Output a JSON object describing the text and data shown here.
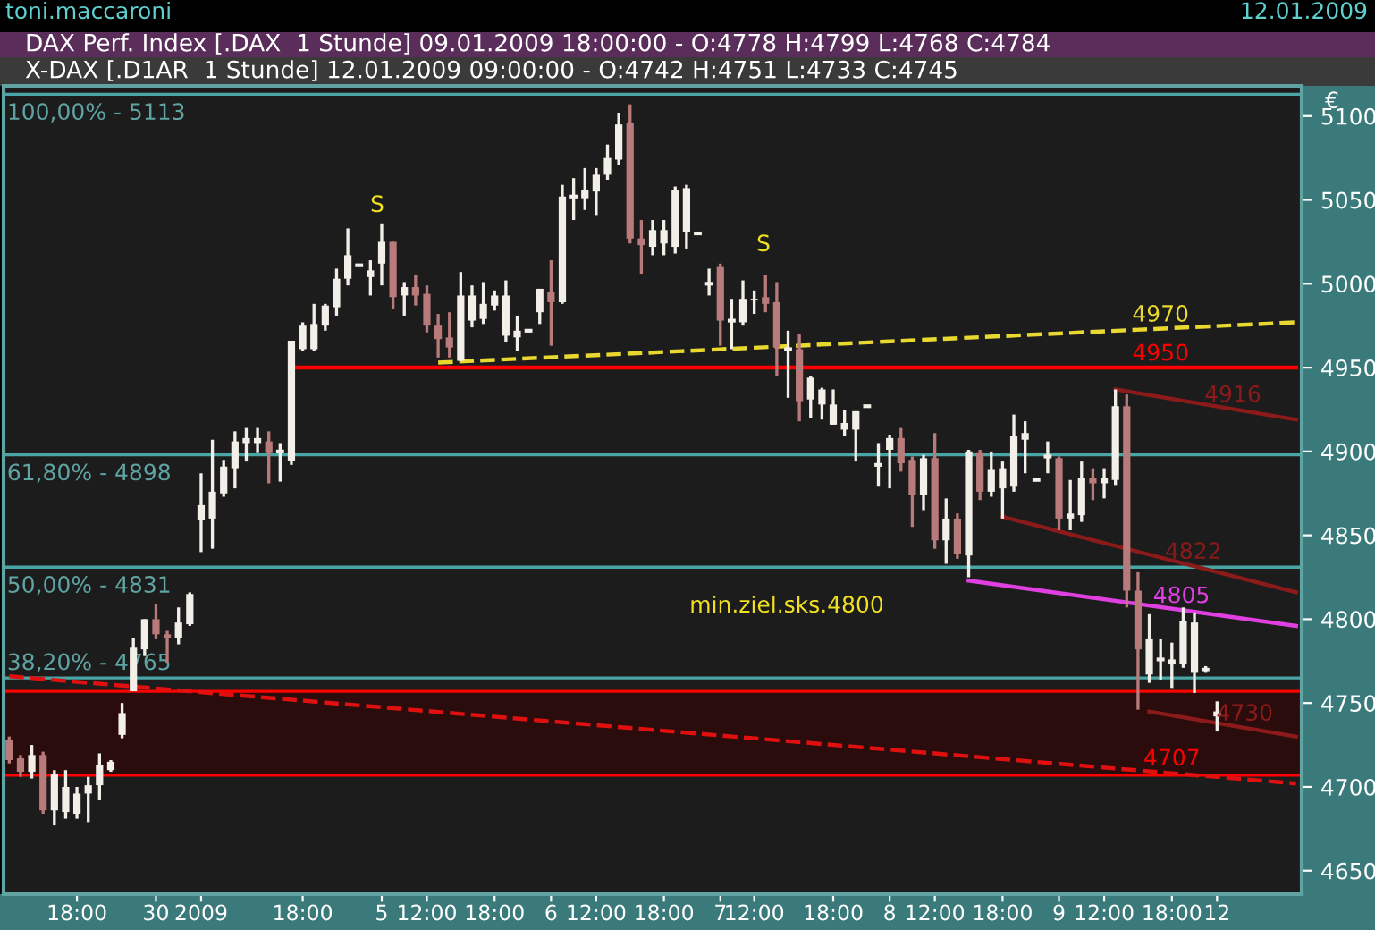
{
  "chart_data": {
    "type": "candlestick",
    "title": "DAX Perf. Index [.DAX  1 Stunde] 09.01.2009 18:00:00 - O:4778 H:4799 L:4768 C:4784",
    "subtitle": "X-DAX [.D1AR  1 Stunde] 12.01.2009 09:00:00 - O:4742 H:4751 L:4733 C:4745",
    "categories": [
      null,
      null,
      null,
      null,
      null,
      null,
      "18:00",
      null,
      null,
      null,
      null,
      null,
      null,
      "30",
      null,
      null,
      null,
      "2009",
      null,
      null,
      null,
      null,
      null,
      null,
      null,
      null,
      "18:00",
      null,
      null,
      null,
      null,
      null,
      null,
      "5",
      null,
      null,
      null,
      "12:00",
      null,
      null,
      null,
      null,
      null,
      "18:00",
      null,
      null,
      null,
      null,
      "6",
      null,
      null,
      null,
      "12:00",
      null,
      null,
      null,
      null,
      null,
      "18:00",
      null,
      null,
      null,
      null,
      "7",
      null,
      null,
      "12:00",
      null,
      null,
      null,
      null,
      null,
      null,
      "18:00",
      null,
      null,
      null,
      null,
      "8",
      null,
      null,
      null,
      "12:00",
      null,
      null,
      null,
      null,
      null,
      "18:00",
      null,
      null,
      null,
      null,
      "9",
      null,
      null,
      null,
      "12:00",
      null,
      null,
      null,
      null,
      null,
      "18:00",
      null,
      null,
      null,
      "12",
      null,
      null,
      null,
      null,
      null,
      null,
      null
    ],
    "ohlc": [
      [
        4728,
        4730,
        4714,
        4716
      ],
      [
        4717,
        4719,
        4706,
        4709
      ],
      [
        4709,
        4725,
        4705,
        4719
      ],
      [
        4719,
        4721,
        4684,
        4686
      ],
      [
        4686,
        4710,
        4677,
        4708
      ],
      [
        4685,
        4710,
        4681,
        4700
      ],
      [
        4684,
        4700,
        4681,
        4696
      ],
      [
        4696,
        4706,
        4679,
        4701
      ],
      [
        4701,
        4720,
        4692,
        4713
      ],
      [
        4710,
        4716,
        4709,
        4715
      ],
      [
        4731,
        4750,
        4729,
        4744
      ],
      [
        4757,
        4789,
        4757,
        4783
      ],
      [
        4782,
        4800,
        4778,
        4800
      ],
      [
        4800,
        4809,
        4788,
        4791
      ],
      [
        4791,
        4793,
        4774,
        4789
      ],
      [
        4789,
        4807,
        4785,
        4798
      ],
      [
        4797,
        4816,
        4796,
        4815
      ],
      [
        4859,
        4887,
        4840,
        4868
      ],
      [
        4860,
        4907,
        4842,
        4876
      ],
      [
        4875,
        4895,
        4873,
        4891
      ],
      [
        4890,
        4912,
        4878,
        4906
      ],
      [
        4905,
        4914,
        4894,
        4908
      ],
      [
        4905,
        4914,
        4899,
        4908
      ],
      [
        4906,
        4912,
        4881,
        4899
      ],
      [
        4900,
        4905,
        4882,
        4900
      ],
      [
        4894,
        4966,
        4892,
        4966
      ],
      [
        4961,
        4977,
        4960,
        4975
      ],
      [
        4961,
        4988,
        4960,
        4976
      ],
      [
        4975,
        4988,
        4972,
        4987
      ],
      [
        4986,
        5009,
        4981,
        5003
      ],
      [
        5003,
        5033,
        4999,
        5017
      ],
      [
        5011,
        5011,
        5011,
        5011
      ],
      [
        5004,
        5014,
        4993,
        5008
      ],
      [
        5012,
        5036,
        4999,
        5025
      ],
      [
        5025,
        5025,
        4985,
        4992
      ],
      [
        4993,
        5001,
        4981,
        4998
      ],
      [
        4998,
        5005,
        4987,
        4993
      ],
      [
        4994,
        4999,
        4971,
        4975
      ],
      [
        4975,
        4982,
        4956,
        4967
      ],
      [
        4968,
        4983,
        4956,
        4962
      ],
      [
        4954,
        5007,
        4954,
        4993
      ],
      [
        4978,
        4999,
        4974,
        4993
      ],
      [
        4979,
        5001,
        4976,
        4988
      ],
      [
        4987,
        4996,
        4984,
        4993
      ],
      [
        4969,
        5002,
        4965,
        4993
      ],
      [
        4968,
        4981,
        4960,
        4972
      ],
      [
        4972,
        4972,
        4972,
        4972
      ],
      [
        4983,
        4997,
        4976,
        4997
      ],
      [
        4995,
        5014,
        4963,
        4989
      ],
      [
        4989,
        5059,
        4988,
        5052
      ],
      [
        5052,
        5063,
        5038,
        5052
      ],
      [
        5051,
        5069,
        5044,
        5056
      ],
      [
        5055,
        5069,
        5041,
        5065
      ],
      [
        5065,
        5083,
        5062,
        5075
      ],
      [
        5074,
        5102,
        5071,
        5095
      ],
      [
        5096,
        5107,
        5024,
        5027
      ],
      [
        5027,
        5038,
        5006,
        5023
      ],
      [
        5022,
        5038,
        5017,
        5032
      ],
      [
        5024,
        5038,
        5017,
        5032
      ],
      [
        5022,
        5058,
        5018,
        5056
      ],
      [
        5031,
        5059,
        5021,
        5057
      ],
      [
        5030,
        5030,
        5030,
        5030
      ],
      [
        5000,
        5009,
        4993,
        5000
      ],
      [
        5010,
        5012,
        4963,
        4978
      ],
      [
        4978,
        4991,
        4961,
        4978
      ],
      [
        4977,
        5002,
        4975,
        4991
      ],
      [
        4990,
        4996,
        4982,
        4991
      ],
      [
        4992,
        5005,
        4983,
        4988
      ],
      [
        4989,
        5001,
        4945,
        4962
      ],
      [
        4961,
        4972,
        4932,
        4961
      ],
      [
        4961,
        4970,
        4918,
        4930
      ],
      [
        4931,
        4945,
        4920,
        4944
      ],
      [
        4928,
        4938,
        4919,
        4937
      ],
      [
        4916,
        4937,
        4916,
        4928
      ],
      [
        4913,
        4925,
        4909,
        4917
      ],
      [
        4913,
        4924,
        4894,
        4924
      ],
      [
        4927,
        4927,
        4927,
        4927
      ],
      [
        4892,
        4905,
        4879,
        4892
      ],
      [
        4901,
        4910,
        4878,
        4908
      ],
      [
        4908,
        4914,
        4888,
        4893
      ],
      [
        4895,
        4897,
        4855,
        4874
      ],
      [
        4874,
        4898,
        4865,
        4896
      ],
      [
        4896,
        4911,
        4842,
        4847
      ],
      [
        4847,
        4872,
        4833,
        4860
      ],
      [
        4860,
        4863,
        4836,
        4839
      ],
      [
        4838,
        4901,
        4825,
        4900
      ],
      [
        4899,
        4901,
        4871,
        4876
      ],
      [
        4876,
        4900,
        4873,
        4889
      ],
      [
        4878,
        4894,
        4860,
        4890
      ],
      [
        4879,
        4922,
        4876,
        4909
      ],
      [
        4907,
        4918,
        4887,
        4911
      ],
      [
        4883,
        4883,
        4883,
        4883
      ],
      [
        4897,
        4906,
        4887,
        4897
      ],
      [
        4896,
        4897,
        4853,
        4860
      ],
      [
        4860,
        4883,
        4853,
        4863
      ],
      [
        4862,
        4894,
        4858,
        4884
      ],
      [
        4884,
        4890,
        4871,
        4881
      ],
      [
        4881,
        4890,
        4872,
        4884
      ],
      [
        4883,
        4937,
        4880,
        4927
      ],
      [
        4927,
        4934,
        4807,
        4817
      ],
      [
        4817,
        4828,
        4746,
        4782
      ],
      [
        4767,
        4803,
        4762,
        4788
      ],
      [
        4776,
        4788,
        4764,
        4776
      ],
      [
        4773,
        4786,
        4759,
        4776
      ],
      [
        4773,
        4807,
        4771,
        4799
      ],
      [
        4768,
        4804,
        4756,
        4798
      ],
      [
        4769,
        4772,
        4768,
        4771
      ],
      [
        4742,
        4751,
        4733,
        4745
      ],
      null,
      null,
      null,
      null,
      null,
      null,
      null
    ],
    "colors": [
      "#b87a7a",
      "#b87a7a",
      "#f2efe8",
      "#b87a7a",
      "#f2efe8",
      "#f2efe8",
      "#f2efe8",
      "#f2efe8",
      "#f2efe8",
      "#f2efe8",
      "#f2efe8",
      "#f2efe8",
      "#f2efe8",
      "#b87a7a",
      "#b87a7a",
      "#f2efe8",
      "#f2efe8",
      "#f2efe8",
      "#f2efe8",
      "#f2efe8",
      "#f2efe8",
      "#f2efe8",
      "#f2efe8",
      "#b87a7a",
      "#f2efe8",
      "#f2efe8",
      "#f2efe8",
      "#f2efe8",
      "#f2efe8",
      "#f2efe8",
      "#f2efe8",
      "#f2efe8",
      "#f2efe8",
      "#f2efe8",
      "#b87a7a",
      "#f2efe8",
      "#b87a7a",
      "#b87a7a",
      "#b87a7a",
      "#b87a7a",
      "#f2efe8",
      "#f2efe8",
      "#f2efe8",
      "#f2efe8",
      "#f2efe8",
      "#f2efe8",
      "#f2efe8",
      "#f2efe8",
      "#b87a7a",
      "#f2efe8",
      "#f2efe8",
      "#f2efe8",
      "#f2efe8",
      "#f2efe8",
      "#f2efe8",
      "#b87a7a",
      "#b87a7a",
      "#f2efe8",
      "#f2efe8",
      "#f2efe8",
      "#f2efe8",
      "#f2efe8",
      "#f2efe8",
      "#b87a7a",
      "#f2efe8",
      "#f2efe8",
      "#f2efe8",
      "#b87a7a",
      "#b87a7a",
      "#f2efe8",
      "#b87a7a",
      "#f2efe8",
      "#f2efe8",
      "#f2efe8",
      "#f2efe8",
      "#f2efe8",
      "#f2efe8",
      "#f2efe8",
      "#f2efe8",
      "#b87a7a",
      "#b87a7a",
      "#f2efe8",
      "#b87a7a",
      "#f2efe8",
      "#b87a7a",
      "#f2efe8",
      "#b87a7a",
      "#f2efe8",
      "#f2efe8",
      "#f2efe8",
      "#f2efe8",
      "#f2efe8",
      "#f2efe8",
      "#b87a7a",
      "#f2efe8",
      "#f2efe8",
      "#b87a7a",
      "#f2efe8",
      "#f2efe8",
      "#b87a7a",
      "#b87a7a",
      "#f2efe8",
      "#f2efe8",
      "#f2efe8",
      "#f2efe8",
      "#f2efe8",
      "#f2efe8",
      "#f2efe8",
      null,
      null,
      null,
      null,
      null,
      null,
      null
    ],
    "series": [
      {
        "type": "line",
        "name": "4970",
        "color": "#e8d830",
        "line_style": "dashed",
        "values": [
          null,
          null,
          null,
          null,
          null,
          null,
          null,
          null,
          null,
          null,
          null,
          null,
          null,
          null,
          null,
          null,
          null,
          null,
          null,
          null,
          null,
          null,
          null,
          null,
          null,
          null,
          null,
          null,
          null,
          null,
          null,
          null,
          null,
          null,
          null,
          null,
          null,
          null,
          4953,
          null,
          null,
          null,
          null,
          null,
          null,
          null,
          null,
          null,
          null,
          null,
          null,
          null,
          null,
          null,
          null,
          null,
          null,
          null,
          null,
          null,
          null,
          null,
          null,
          null,
          null,
          null,
          null,
          null,
          null,
          null,
          null,
          null,
          null,
          null,
          null,
          null,
          null,
          null,
          null,
          null,
          null,
          null,
          null,
          null,
          null,
          null,
          null,
          null,
          null,
          null,
          null,
          null,
          null,
          null,
          null,
          null,
          null,
          null,
          null,
          null,
          null,
          null,
          null,
          null,
          null,
          null,
          null,
          null,
          null,
          null,
          null,
          null,
          null,
          null,
          4977
        ]
      },
      {
        "type": "line",
        "name": "4950",
        "color": "#ff0000",
        "line_style": "solid",
        "values": [
          null,
          null,
          null,
          null,
          null,
          null,
          null,
          null,
          null,
          null,
          null,
          null,
          null,
          null,
          null,
          null,
          null,
          null,
          null,
          null,
          null,
          null,
          null,
          null,
          null,
          4950,
          null,
          null,
          null,
          null,
          null,
          null,
          null,
          null,
          null,
          null,
          null,
          null,
          null,
          null,
          null,
          null,
          null,
          null,
          null,
          null,
          null,
          null,
          null,
          null,
          null,
          null,
          null,
          null,
          null,
          null,
          null,
          null,
          null,
          null,
          null,
          null,
          null,
          null,
          null,
          null,
          null,
          null,
          null,
          null,
          null,
          null,
          null,
          null,
          null,
          null,
          null,
          null,
          null,
          null,
          null,
          null,
          null,
          null,
          null,
          null,
          null,
          null,
          null,
          null,
          null,
          null,
          null,
          null,
          null,
          null,
          null,
          null,
          null,
          null,
          null,
          null,
          null,
          null,
          null,
          null,
          null,
          null,
          null,
          null,
          null,
          null,
          null,
          null,
          4950
        ]
      },
      {
        "type": "line",
        "name": "4916",
        "color": "#8b1a1a",
        "line_style": "solid",
        "values": [
          null,
          null,
          null,
          null,
          null,
          null,
          null,
          null,
          null,
          null,
          null,
          null,
          null,
          null,
          null,
          null,
          null,
          null,
          null,
          null,
          null,
          null,
          null,
          null,
          null,
          null,
          null,
          null,
          null,
          null,
          null,
          null,
          null,
          null,
          null,
          null,
          null,
          null,
          null,
          null,
          null,
          null,
          null,
          null,
          null,
          null,
          null,
          null,
          null,
          null,
          null,
          null,
          null,
          null,
          null,
          null,
          null,
          null,
          null,
          null,
          null,
          null,
          null,
          null,
          null,
          null,
          null,
          null,
          null,
          null,
          null,
          null,
          null,
          null,
          null,
          null,
          null,
          null,
          null,
          null,
          null,
          null,
          null,
          null,
          null,
          null,
          null,
          null,
          null,
          null,
          null,
          null,
          null,
          null,
          null,
          null,
          null,
          null,
          4937,
          null,
          null,
          null,
          null,
          null,
          null,
          null,
          null,
          null,
          null,
          null,
          null,
          null,
          null,
          null,
          4919
        ]
      },
      {
        "type": "line",
        "name": "4822",
        "color": "#8b1a1a",
        "line_style": "solid",
        "values": [
          null,
          null,
          null,
          null,
          null,
          null,
          null,
          null,
          null,
          null,
          null,
          null,
          null,
          null,
          null,
          null,
          null,
          null,
          null,
          null,
          null,
          null,
          null,
          null,
          null,
          null,
          null,
          null,
          null,
          null,
          null,
          null,
          null,
          null,
          null,
          null,
          null,
          null,
          null,
          null,
          null,
          null,
          null,
          null,
          null,
          null,
          null,
          null,
          null,
          null,
          null,
          null,
          null,
          null,
          null,
          null,
          null,
          null,
          null,
          null,
          null,
          null,
          null,
          null,
          null,
          null,
          null,
          null,
          null,
          null,
          null,
          null,
          null,
          null,
          null,
          null,
          null,
          null,
          null,
          null,
          null,
          null,
          null,
          null,
          null,
          null,
          null,
          null,
          4861,
          null,
          null,
          null,
          null,
          null,
          null,
          null,
          null,
          null,
          null,
          null,
          null,
          null,
          null,
          null,
          null,
          null,
          null,
          null,
          null,
          null,
          null,
          null,
          null,
          null,
          4816
        ]
      },
      {
        "type": "line",
        "name": "4805",
        "color": "#e040e0",
        "line_style": "solid",
        "values": [
          null,
          null,
          null,
          null,
          null,
          null,
          null,
          null,
          null,
          null,
          null,
          null,
          null,
          null,
          null,
          null,
          null,
          null,
          null,
          null,
          null,
          null,
          null,
          null,
          null,
          null,
          null,
          null,
          null,
          null,
          null,
          null,
          null,
          null,
          null,
          null,
          null,
          null,
          null,
          null,
          null,
          null,
          null,
          null,
          null,
          null,
          null,
          null,
          null,
          null,
          null,
          null,
          null,
          null,
          null,
          null,
          null,
          null,
          null,
          null,
          null,
          null,
          null,
          null,
          null,
          null,
          null,
          null,
          null,
          null,
          null,
          null,
          null,
          null,
          null,
          null,
          null,
          null,
          null,
          null,
          null,
          null,
          null,
          null,
          null,
          4823,
          null,
          null,
          null,
          null,
          null,
          null,
          null,
          null,
          null,
          null,
          null,
          null,
          null,
          null,
          null,
          null,
          null,
          null,
          null,
          null,
          null,
          null,
          null,
          null,
          null,
          null,
          null,
          null,
          4796
        ]
      },
      {
        "type": "line",
        "name": "4730",
        "color": "#8b1a1a",
        "line_style": "solid",
        "values": [
          null,
          null,
          null,
          null,
          null,
          null,
          null,
          null,
          null,
          null,
          null,
          null,
          null,
          null,
          null,
          null,
          null,
          null,
          null,
          null,
          null,
          null,
          null,
          null,
          null,
          null,
          null,
          null,
          null,
          null,
          null,
          null,
          null,
          null,
          null,
          null,
          null,
          null,
          null,
          null,
          null,
          null,
          null,
          null,
          null,
          null,
          null,
          null,
          null,
          null,
          null,
          null,
          null,
          null,
          null,
          null,
          null,
          null,
          null,
          null,
          null,
          null,
          null,
          null,
          null,
          null,
          null,
          null,
          null,
          null,
          null,
          null,
          null,
          null,
          null,
          null,
          null,
          null,
          null,
          null,
          null,
          null,
          null,
          null,
          null,
          null,
          null,
          null,
          null,
          null,
          null,
          null,
          null,
          null,
          null,
          null,
          null,
          null,
          null,
          null,
          null,
          4745,
          null,
          null,
          null,
          null,
          null,
          null,
          null,
          null,
          null,
          null,
          null,
          null,
          4730
        ]
      },
      {
        "type": "line",
        "color": "#e01010",
        "line_style": "dashed",
        "values": [
          4766,
          null,
          null,
          null,
          null,
          null,
          null,
          null,
          null,
          null,
          null,
          null,
          null,
          null,
          null,
          null,
          null,
          null,
          null,
          null,
          null,
          null,
          null,
          null,
          null,
          null,
          null,
          null,
          null,
          null,
          null,
          null,
          null,
          null,
          null,
          null,
          null,
          null,
          null,
          null,
          null,
          null,
          null,
          null,
          null,
          null,
          null,
          null,
          null,
          null,
          null,
          null,
          null,
          null,
          null,
          null,
          null,
          null,
          null,
          null,
          null,
          null,
          null,
          null,
          null,
          null,
          null,
          null,
          null,
          null,
          null,
          null,
          null,
          null,
          null,
          null,
          null,
          null,
          null,
          null,
          null,
          null,
          null,
          null,
          null,
          null,
          null,
          null,
          null,
          null,
          null,
          null,
          null,
          null,
          null,
          null,
          null,
          null,
          null,
          null,
          null,
          null,
          null,
          null,
          null,
          null,
          null,
          null,
          null,
          null,
          null,
          null,
          null,
          null,
          4702
        ]
      }
    ],
    "ref_lines": [
      {
        "axis": "y",
        "value": 5113,
        "color": "#4aa6a6"
      },
      {
        "axis": "y",
        "value": 4898,
        "color": "#4aa6a6"
      },
      {
        "axis": "y",
        "value": 4831,
        "color": "#4aa6a6"
      },
      {
        "axis": "y",
        "value": 4765,
        "color": "#4aa6a6"
      },
      {
        "axis": "y",
        "value": 4757,
        "color": "#ff0000"
      },
      {
        "axis": "y",
        "value": 4707,
        "label": "4707",
        "color": "#ff0000"
      }
    ],
    "bands": [
      {
        "axis": "y",
        "from": 4707,
        "to": 4757,
        "color": "#2a0c0c"
      }
    ],
    "annotations": [
      {
        "text": "100,00% - 5113",
        "y": 5113
      },
      {
        "text": "61,80% - 4898",
        "y": 4898
      },
      {
        "text": "50,00% - 4831",
        "y": 4831
      },
      {
        "text": "38,20% - 4765",
        "y": 4765
      },
      "S",
      "S",
      "min.ziel.sks.4800",
      "toni.maccaroni",
      "12.01.2009",
      "€"
    ],
    "ylim": [
      4636,
      5118
    ],
    "yticks": [
      4650,
      4700,
      4750,
      4800,
      4850,
      4900,
      4950,
      5000,
      5050,
      5100
    ],
    "grid": false
  }
}
